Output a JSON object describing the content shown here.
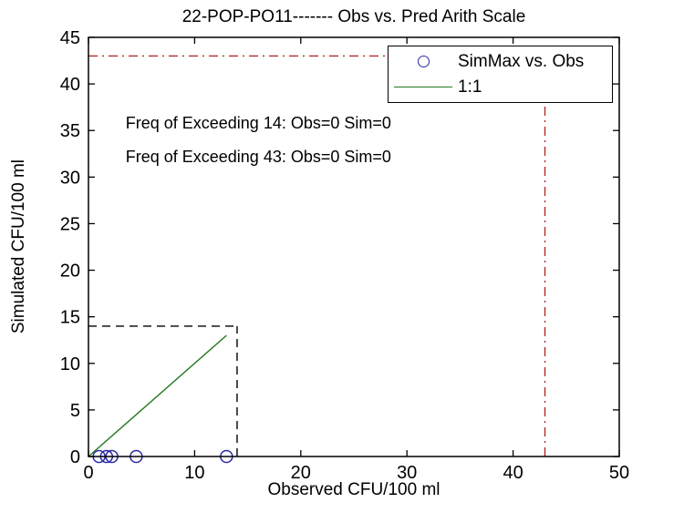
{
  "chart_data": {
    "type": "scatter",
    "title": "22-POP-PO11------- Obs vs. Pred Arith Scale",
    "xlabel": "Observed CFU/100 ml",
    "ylabel": "Simulated CFU/100 ml",
    "xlim": [
      0,
      50
    ],
    "ylim": [
      0,
      45
    ],
    "xticks": [
      0,
      10,
      20,
      30,
      40,
      50
    ],
    "yticks": [
      0,
      5,
      10,
      15,
      20,
      25,
      30,
      35,
      40,
      45
    ],
    "grid": false,
    "legend_position": "top-right",
    "series": [
      {
        "name": "SimMax vs. Obs",
        "type": "scatter",
        "marker": "circle",
        "color": "#2a2aa5",
        "points": [
          [
            1,
            0
          ],
          [
            1.7,
            0
          ],
          [
            2.2,
            0
          ],
          [
            4.5,
            0
          ],
          [
            13,
            0
          ]
        ]
      },
      {
        "name": "1:1",
        "type": "line",
        "color": "#217821",
        "points": [
          [
            0,
            0
          ],
          [
            13,
            13
          ]
        ]
      }
    ],
    "reference_lines": [
      {
        "name": "obs-threshold-43",
        "orientation": "horizontal",
        "value": 43,
        "span": [
          0,
          43
        ],
        "style": "dashdot",
        "color": "#b02a2a"
      },
      {
        "name": "sim-threshold-43",
        "orientation": "vertical",
        "value": 43,
        "span": [
          0,
          43
        ],
        "style": "dashdot",
        "color": "#b02a2a"
      },
      {
        "name": "obs-threshold-14",
        "orientation": "horizontal",
        "value": 14,
        "span": [
          0,
          14
        ],
        "style": "dashed",
        "color": "#000000"
      },
      {
        "name": "sim-threshold-14",
        "orientation": "vertical",
        "value": 14,
        "span": [
          0,
          14
        ],
        "style": "dashed",
        "color": "#000000"
      }
    ],
    "annotations": [
      {
        "text": "Freq of Exceeding 14: Obs=0 Sim=0",
        "x": 3.5,
        "y": 35.8
      },
      {
        "text": "Freq of Exceeding 43: Obs=0 Sim=0",
        "x": 3.5,
        "y": 32.2
      }
    ]
  },
  "legend": {
    "items": [
      {
        "label": "SimMax vs. Obs",
        "marker": "circle",
        "color": "#2a2aa5"
      },
      {
        "label": "1:1",
        "marker": "line",
        "color": "#217821"
      }
    ]
  },
  "frame_color": "#000000"
}
